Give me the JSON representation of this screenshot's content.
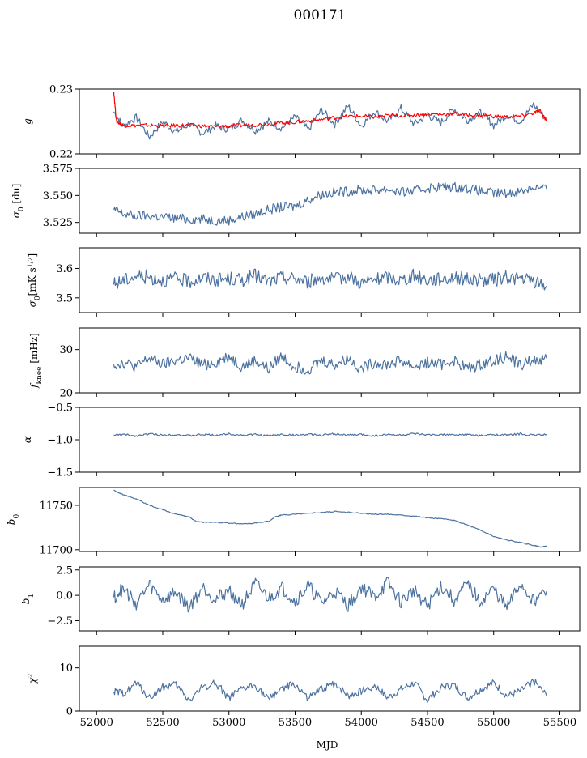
{
  "figure": {
    "title": "000171"
  },
  "colors": {
    "main_series": "#4c72a0",
    "fit_series": "#ff0000"
  },
  "chart_data": [
    {
      "type": "line",
      "ylabel": "g",
      "ylim": [
        0.22,
        0.23
      ],
      "yticks": [
        0.22,
        0.23
      ],
      "ytick_labels": [
        "0.22",
        "0.23"
      ],
      "xlim": [
        51870,
        55650
      ],
      "series": [
        {
          "x": [
            52130,
            52200,
            52300,
            52400,
            52500,
            52600,
            52700,
            52800,
            52900,
            53000,
            53100,
            53200,
            53300,
            53400,
            53500,
            53600,
            53700,
            53800,
            53900,
            54000,
            54100,
            54200,
            54300,
            54400,
            54500,
            54600,
            54700,
            54800,
            54900,
            55000,
            55100,
            55200,
            55300,
            55400
          ],
          "y": [
            0.2265,
            0.2243,
            0.2256,
            0.2226,
            0.225,
            0.2234,
            0.2246,
            0.2232,
            0.2243,
            0.2238,
            0.2252,
            0.2236,
            0.225,
            0.224,
            0.2257,
            0.2237,
            0.2268,
            0.2246,
            0.2274,
            0.2243,
            0.2266,
            0.225,
            0.227,
            0.2246,
            0.226,
            0.2248,
            0.227,
            0.2252,
            0.2264,
            0.2244,
            0.226,
            0.225,
            0.2276,
            0.2253
          ]
        },
        {
          "x": [
            52130,
            52150,
            52200,
            52300,
            52400,
            52500,
            52600,
            52700,
            52800,
            52900,
            53000,
            53100,
            53200,
            53300,
            53400,
            53500,
            53600,
            53700,
            53800,
            53900,
            54000,
            54100,
            54200,
            54300,
            54400,
            54500,
            54600,
            54700,
            54800,
            54900,
            55000,
            55100,
            55200,
            55300,
            55350,
            55400
          ],
          "y": [
            0.2296,
            0.225,
            0.2244,
            0.2244,
            0.2244,
            0.2243,
            0.2244,
            0.2244,
            0.2243,
            0.2242,
            0.2243,
            0.2244,
            0.2245,
            0.2246,
            0.2248,
            0.2249,
            0.2251,
            0.2253,
            0.2256,
            0.2258,
            0.2258,
            0.2257,
            0.2259,
            0.2259,
            0.226,
            0.2262,
            0.2261,
            0.2262,
            0.226,
            0.226,
            0.2258,
            0.2257,
            0.2258,
            0.2263,
            0.2266,
            0.2252
          ]
        }
      ]
    },
    {
      "type": "line",
      "ylabel": "σ₀ [du]",
      "ylim": [
        3.515,
        3.575
      ],
      "yticks": [
        3.525,
        3.55,
        3.575
      ],
      "ytick_labels": [
        "3.525",
        "3.550",
        "3.575"
      ],
      "xlim": [
        51870,
        55650
      ],
      "series": [
        {
          "x": [
            52130,
            52200,
            52300,
            52400,
            52500,
            52600,
            52700,
            52800,
            52900,
            53000,
            53100,
            53200,
            53300,
            53400,
            53500,
            53600,
            53700,
            53800,
            53900,
            54000,
            54100,
            54200,
            54300,
            54400,
            54500,
            54600,
            54700,
            54800,
            54900,
            55000,
            55100,
            55200,
            55300,
            55400
          ],
          "y": [
            3.537,
            3.533,
            3.531,
            3.531,
            3.53,
            3.529,
            3.528,
            3.528,
            3.527,
            3.527,
            3.53,
            3.533,
            3.537,
            3.539,
            3.54,
            3.546,
            3.551,
            3.553,
            3.554,
            3.555,
            3.555,
            3.556,
            3.553,
            3.554,
            3.557,
            3.558,
            3.558,
            3.557,
            3.554,
            3.552,
            3.552,
            3.554,
            3.558,
            3.556
          ]
        }
      ]
    },
    {
      "type": "line",
      "ylabel": "σ₀[mK s^1/2]",
      "ylim": [
        3.45,
        3.67
      ],
      "yticks": [
        3.5,
        3.6
      ],
      "ytick_labels": [
        "3.5",
        "3.6"
      ],
      "xlim": [
        51870,
        55650
      ],
      "series": [
        {
          "x": [
            52130,
            52200,
            52300,
            52400,
            52500,
            52600,
            52700,
            52800,
            52900,
            53000,
            53100,
            53200,
            53300,
            53400,
            53500,
            53600,
            53700,
            53800,
            53900,
            54000,
            54100,
            54200,
            54300,
            54400,
            54500,
            54600,
            54700,
            54800,
            54900,
            55000,
            55100,
            55200,
            55300,
            55400
          ],
          "y": [
            3.545,
            3.56,
            3.575,
            3.57,
            3.56,
            3.565,
            3.555,
            3.57,
            3.56,
            3.565,
            3.56,
            3.575,
            3.555,
            3.57,
            3.565,
            3.555,
            3.57,
            3.56,
            3.575,
            3.55,
            3.56,
            3.57,
            3.56,
            3.575,
            3.56,
            3.565,
            3.57,
            3.565,
            3.56,
            3.56,
            3.57,
            3.565,
            3.555,
            3.54
          ]
        }
      ]
    },
    {
      "type": "line",
      "ylabel": "f_knee [mHz]",
      "ylim": [
        20,
        35
      ],
      "yticks": [
        20,
        30
      ],
      "ytick_labels": [
        "20",
        "30"
      ],
      "xlim": [
        51870,
        55650
      ],
      "series": [
        {
          "x": [
            52130,
            52200,
            52300,
            52400,
            52500,
            52600,
            52700,
            52800,
            52900,
            53000,
            53100,
            53200,
            53300,
            53400,
            53500,
            53600,
            53700,
            53800,
            53900,
            54000,
            54100,
            54200,
            54300,
            54400,
            54500,
            54600,
            54700,
            54800,
            54900,
            55000,
            55100,
            55200,
            55300,
            55400
          ],
          "y": [
            26.5,
            27.0,
            26.0,
            28.0,
            26.5,
            27.5,
            28.0,
            26.5,
            27.0,
            28.5,
            26.0,
            27.5,
            25.5,
            28.5,
            26.0,
            25.5,
            27.5,
            26.5,
            28.0,
            25.5,
            27.0,
            26.5,
            27.5,
            26.0,
            27.0,
            26.5,
            27.5,
            25.5,
            26.5,
            27.5,
            28.5,
            26.5,
            27.5,
            28.0
          ]
        }
      ]
    },
    {
      "type": "line",
      "ylabel": "α",
      "ylim": [
        -1.5,
        -0.5
      ],
      "yticks": [
        -1.5,
        -1.0,
        -0.5
      ],
      "ytick_labels": [
        "−1.5",
        "−1.0",
        "−0.5"
      ],
      "xlim": [
        51870,
        55650
      ],
      "series": [
        {
          "x": [
            52130,
            52200,
            52300,
            52400,
            52500,
            52600,
            52700,
            52800,
            52900,
            53000,
            53100,
            53200,
            53300,
            53400,
            53500,
            53600,
            53700,
            53800,
            53900,
            54000,
            54100,
            54200,
            54300,
            54400,
            54500,
            54600,
            54700,
            54800,
            54900,
            55000,
            55100,
            55200,
            55300,
            55400
          ],
          "y": [
            -0.93,
            -0.92,
            -0.94,
            -0.91,
            -0.93,
            -0.92,
            -0.94,
            -0.92,
            -0.93,
            -0.91,
            -0.93,
            -0.92,
            -0.94,
            -0.92,
            -0.93,
            -0.92,
            -0.93,
            -0.91,
            -0.93,
            -0.92,
            -0.94,
            -0.92,
            -0.93,
            -0.91,
            -0.93,
            -0.92,
            -0.93,
            -0.92,
            -0.94,
            -0.92,
            -0.93,
            -0.91,
            -0.93,
            -0.92
          ]
        }
      ]
    },
    {
      "type": "line",
      "ylabel": "b₀",
      "ylim": [
        11698,
        11770
      ],
      "yticks": [
        11700,
        11750
      ],
      "ytick_labels": [
        "11700",
        "11750"
      ],
      "xlim": [
        51870,
        55650
      ],
      "series": [
        {
          "x": [
            52130,
            52200,
            52300,
            52400,
            52500,
            52600,
            52700,
            52750,
            52800,
            52900,
            53000,
            53100,
            53200,
            53300,
            53350,
            53400,
            53500,
            53600,
            53700,
            53800,
            53900,
            54000,
            54100,
            54200,
            54300,
            54400,
            54500,
            54600,
            54700,
            54800,
            54900,
            55000,
            55100,
            55200,
            55300,
            55350,
            55400
          ],
          "y": [
            11767,
            11762,
            11757,
            11750,
            11745,
            11740,
            11737,
            11732,
            11731,
            11731,
            11730,
            11729,
            11730,
            11732,
            11737,
            11739,
            11740,
            11741,
            11742,
            11743,
            11742,
            11741,
            11740,
            11740,
            11739,
            11738,
            11736,
            11735,
            11733,
            11728,
            11722,
            11715,
            11711,
            11708,
            11705,
            11703,
            11704
          ]
        }
      ]
    },
    {
      "type": "line",
      "ylabel": "b₁",
      "ylim": [
        -3.5,
        2.8
      ],
      "yticks": [
        -2.5,
        0.0,
        2.5
      ],
      "ytick_labels": [
        "−2.5",
        "0.0",
        "2.5"
      ],
      "xlim": [
        51870,
        55650
      ],
      "series": [
        {
          "x": [
            52130,
            52200,
            52300,
            52400,
            52500,
            52600,
            52700,
            52800,
            52900,
            53000,
            53100,
            53200,
            53300,
            53400,
            53500,
            53600,
            53700,
            53800,
            53900,
            54000,
            54100,
            54200,
            54300,
            54400,
            54500,
            54600,
            54700,
            54800,
            54900,
            55000,
            55100,
            55200,
            55300,
            55400
          ],
          "y": [
            -0.2,
            0.6,
            -0.8,
            1.0,
            -0.5,
            0.3,
            -1.2,
            0.8,
            -0.4,
            0.5,
            -0.9,
            1.1,
            -0.3,
            0.7,
            -0.6,
            0.9,
            -0.8,
            0.4,
            -1.0,
            0.8,
            -0.2,
            1.2,
            -0.7,
            0.5,
            -1.1,
            0.9,
            -0.4,
            1.0,
            -0.6,
            0.6,
            -1.3,
            1.1,
            -0.5,
            0.4
          ]
        }
      ]
    },
    {
      "type": "line",
      "ylabel": "χ²",
      "ylim": [
        0,
        15
      ],
      "yticks": [
        0,
        10
      ],
      "ytick_labels": [
        "0",
        "10"
      ],
      "xlim": [
        51870,
        55650
      ],
      "xlabel": "MJD",
      "xticks": [
        52000,
        52500,
        53000,
        53500,
        54000,
        54500,
        55000,
        55500
      ],
      "xtick_labels": [
        "52000",
        "52500",
        "53000",
        "53500",
        "54000",
        "54500",
        "55000",
        "55500"
      ],
      "series": [
        {
          "x": [
            52130,
            52200,
            52300,
            52400,
            52500,
            52600,
            52700,
            52800,
            52900,
            53000,
            53100,
            53200,
            53300,
            53400,
            53500,
            53600,
            53700,
            53800,
            53900,
            54000,
            54100,
            54200,
            54300,
            54400,
            54500,
            54600,
            54700,
            54800,
            54900,
            55000,
            55100,
            55200,
            55300,
            55400
          ],
          "y": [
            4.5,
            4.0,
            6.5,
            3.0,
            5.5,
            6.0,
            2.5,
            5.5,
            6.5,
            3.0,
            5.0,
            6.0,
            2.5,
            5.5,
            6.0,
            3.0,
            5.0,
            6.5,
            3.5,
            4.5,
            6.0,
            3.0,
            5.0,
            6.5,
            2.5,
            5.5,
            6.0,
            3.0,
            5.0,
            6.5,
            3.5,
            4.5,
            7.0,
            3.5
          ]
        }
      ]
    }
  ]
}
